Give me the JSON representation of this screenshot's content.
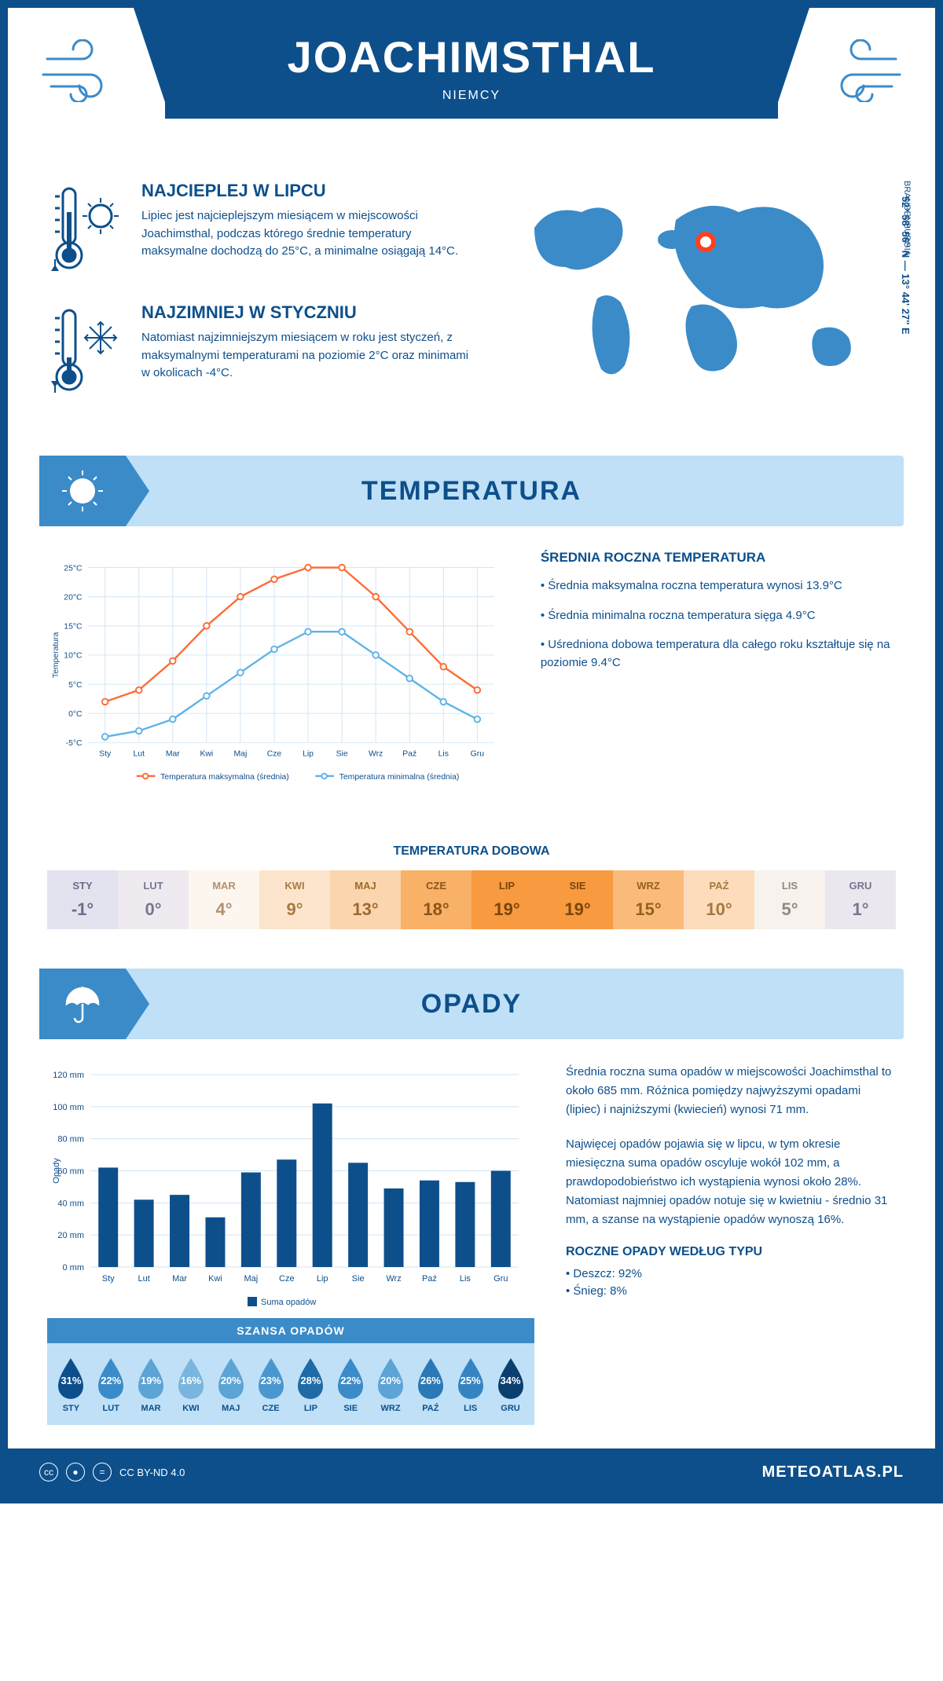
{
  "header": {
    "city": "JOACHIMSTHAL",
    "country": "NIEMCY",
    "coords": "52° 58' 56'' N — 13° 44' 27'' E",
    "region": "BRANDENBURGIA"
  },
  "intro": {
    "hot": {
      "title": "NAJCIEPLEJ W LIPCU",
      "text": "Lipiec jest najcieplejszym miesiącem w miejscowości Joachimsthal, podczas którego średnie temperatury maksymalne dochodzą do 25°C, a minimalne osiągają 14°C."
    },
    "cold": {
      "title": "NAJZIMNIEJ W STYCZNIU",
      "text": "Natomiast najzimniejszym miesiącem w roku jest styczeń, z maksymalnymi temperaturami na poziomie 2°C oraz minimami w okolicach -4°C."
    }
  },
  "months": [
    "Sty",
    "Lut",
    "Mar",
    "Kwi",
    "Maj",
    "Cze",
    "Lip",
    "Sie",
    "Wrz",
    "Paź",
    "Lis",
    "Gru"
  ],
  "months_upper": [
    "STY",
    "LUT",
    "MAR",
    "KWI",
    "MAJ",
    "CZE",
    "LIP",
    "SIE",
    "WRZ",
    "PAŹ",
    "LIS",
    "GRU"
  ],
  "temperature": {
    "section_title": "TEMPERATURA",
    "chart": {
      "type": "line",
      "y_label": "Temperatura",
      "y_ticks": [
        -5,
        0,
        5,
        10,
        15,
        20,
        25
      ],
      "y_tick_labels": [
        "-5°C",
        "0°C",
        "5°C",
        "10°C",
        "15°C",
        "20°C",
        "25°C"
      ],
      "ylim": [
        -5,
        25
      ],
      "max_series": {
        "color": "#ff6b35",
        "label": "Temperatura maksymalna (średnia)",
        "values": [
          2,
          4,
          9,
          15,
          20,
          23,
          25,
          25,
          20,
          14,
          8,
          4
        ]
      },
      "min_series": {
        "color": "#5eb3e8",
        "label": "Temperatura minimalna (średnia)",
        "values": [
          -4,
          -3,
          -1,
          3,
          7,
          11,
          14,
          14,
          10,
          6,
          2,
          -1
        ]
      },
      "grid_color": "#d0e5f5",
      "background_color": "#ffffff"
    },
    "side": {
      "title": "ŚREDNIA ROCZNA TEMPERATURA",
      "bullets": [
        "Średnia maksymalna roczna temperatura wynosi 13.9°C",
        "Średnia minimalna roczna temperatura sięga 4.9°C",
        "Uśredniona dobowa temperatura dla całego roku kształtuje się na poziomie 9.4°C"
      ]
    },
    "daily": {
      "title": "TEMPERATURA DOBOWA",
      "values": [
        "-1°",
        "0°",
        "4°",
        "9°",
        "13°",
        "18°",
        "19°",
        "19°",
        "15°",
        "10°",
        "5°",
        "1°"
      ],
      "bg_colors": [
        "#e3e3f0",
        "#efeaf0",
        "#fdf6ef",
        "#fce5cc",
        "#fbd5ad",
        "#f9b067",
        "#f89a40",
        "#f89a40",
        "#fabb7a",
        "#fcdcbb",
        "#f7f2ed",
        "#ebe7ee"
      ],
      "text_colors": [
        "#6b6b8a",
        "#7a7590",
        "#b09070",
        "#a87b45",
        "#9c6a2e",
        "#8a5518",
        "#7a4508",
        "#7a4508",
        "#946022",
        "#a57840",
        "#8f8a80",
        "#787490"
      ]
    }
  },
  "precipitation": {
    "section_title": "OPADY",
    "chart": {
      "type": "bar",
      "y_label": "Opady",
      "y_ticks": [
        0,
        20,
        40,
        60,
        80,
        100,
        120
      ],
      "y_tick_labels": [
        "0 mm",
        "20 mm",
        "40 mm",
        "60 mm",
        "80 mm",
        "100 mm",
        "120 mm"
      ],
      "ylim": [
        0,
        120
      ],
      "values": [
        62,
        42,
        45,
        31,
        59,
        67,
        102,
        65,
        49,
        54,
        53,
        60
      ],
      "bar_color": "#0d4f8b",
      "legend": "Suma opadów",
      "grid_color": "#d0e5f5"
    },
    "paragraphs": [
      "Średnia roczna suma opadów w miejscowości Joachimsthal to około 685 mm. Różnica pomiędzy najwyższymi opadami (lipiec) i najniższymi (kwiecień) wynosi 71 mm.",
      "Najwięcej opadów pojawia się w lipcu, w tym okresie miesięczna suma opadów oscyluje wokół 102 mm, a prawdopodobieństwo ich wystąpienia wynosi około 28%. Natomiast najmniej opadów notuje się w kwietniu - średnio 31 mm, a szanse na wystąpienie opadów wynoszą 16%."
    ],
    "chance": {
      "title": "SZANSA OPADÓW",
      "values": [
        "31%",
        "22%",
        "19%",
        "16%",
        "20%",
        "23%",
        "28%",
        "22%",
        "20%",
        "26%",
        "25%",
        "34%"
      ],
      "drop_colors": [
        "#0d4f8b",
        "#3b8bc9",
        "#5ca3d6",
        "#7ab5df",
        "#5ca3d6",
        "#4a97d0",
        "#1e6ba8",
        "#3b8bc9",
        "#5ca3d6",
        "#2a78b5",
        "#3584c2",
        "#0a3f70"
      ]
    },
    "types": {
      "title": "ROCZNE OPADY WEDŁUG TYPU",
      "items": [
        "Deszcz: 92%",
        "Śnieg: 8%"
      ]
    }
  },
  "footer": {
    "license": "CC BY-ND 4.0",
    "site": "METEOATLAS.PL"
  }
}
